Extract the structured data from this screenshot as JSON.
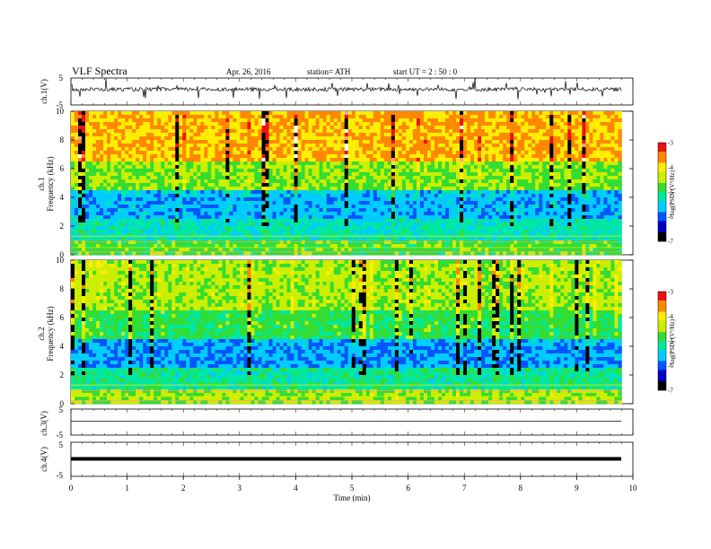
{
  "header": {
    "title": "VLF  Spectra",
    "date": "Apr. 26, 2016",
    "station": "station= ATH",
    "start": "start  UT  =   2  : 50 : 0"
  },
  "chart_data": [
    {
      "type": "line",
      "channel": "ch.1",
      "ylabel": "ch.1(V)",
      "ylim": [
        -5,
        5
      ],
      "yticks": [
        "5",
        "-5"
      ],
      "xlim": [
        0,
        10
      ],
      "note": "noisy waveform centered near 0.8 V with spikes"
    },
    {
      "type": "heatmap",
      "channel": "ch.1",
      "ylabel": "ch.1 Frequency (kHz)",
      "ylim": [
        0,
        10
      ],
      "yticks": [
        "0",
        "2",
        "4",
        "6",
        "8",
        "10"
      ],
      "xlim": [
        0,
        9.8
      ],
      "colorbar": {
        "label": "log(PSD) (V²/Hz)",
        "range": [
          -7,
          -3
        ],
        "ticks": [
          "-3",
          "-4",
          "-5",
          "-6",
          "-7"
        ]
      }
    },
    {
      "type": "heatmap",
      "channel": "ch.2",
      "ylabel": "ch.2 Frequency (kHz)",
      "ylim": [
        0,
        10
      ],
      "yticks": [
        "0",
        "2",
        "4",
        "6",
        "8",
        "10"
      ],
      "xlim": [
        0,
        9.8
      ],
      "colorbar": {
        "label": "log(PSD) (V²/Hz)",
        "range": [
          -7,
          -3
        ],
        "ticks": [
          "-3",
          "-4",
          "-5",
          "-6",
          "-7"
        ]
      }
    },
    {
      "type": "line",
      "channel": "ch.3",
      "ylabel": "ch.3(V)",
      "ylim": [
        -5,
        5
      ],
      "yticks": [
        "5",
        "-5"
      ],
      "note": "flat line near 0 V"
    },
    {
      "type": "line",
      "channel": "ch.4",
      "ylabel": "ch.4(V)",
      "ylim": [
        -5,
        5
      ],
      "yticks": [
        "5",
        "-5"
      ],
      "note": "thick flat line near 0 V"
    }
  ],
  "xaxis": {
    "label": "Time  (min)",
    "range": [
      0,
      10
    ],
    "ticks": [
      "0",
      "1",
      "2",
      "3",
      "4",
      "5",
      "6",
      "7",
      "8",
      "9",
      "10"
    ]
  },
  "colors": {
    "colormap": [
      "#000000",
      "#0000c8",
      "#0055ff",
      "#00ccff",
      "#00e8a0",
      "#33dd33",
      "#ccee00",
      "#ffee00",
      "#ff8800",
      "#ee1111",
      "#ff9999",
      "#ffffff"
    ]
  }
}
